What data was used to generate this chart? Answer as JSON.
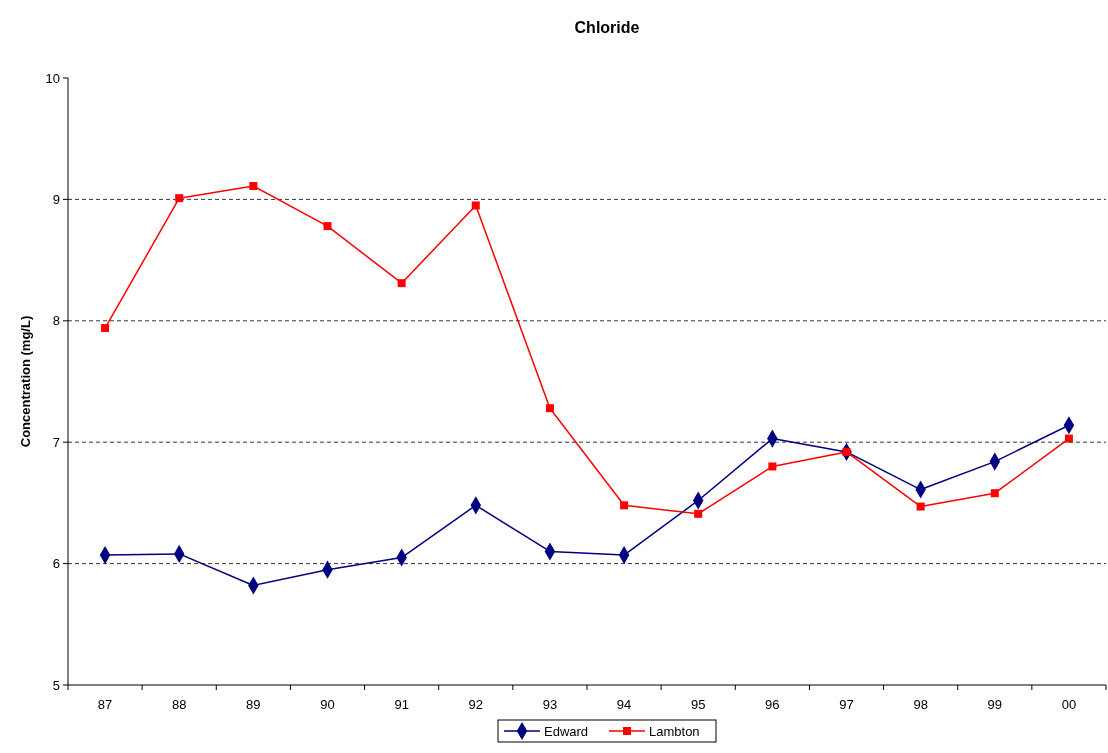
{
  "chart_data": {
    "type": "line",
    "title": "Chloride",
    "ylabel": "Concentration (mg/L)",
    "categories": [
      "87",
      "88",
      "89",
      "90",
      "91",
      "92",
      "93",
      "94",
      "95",
      "96",
      "97",
      "98",
      "99",
      "00"
    ],
    "series": [
      {
        "name": "Edward",
        "color": "#000080",
        "marker": "diamond",
        "values": [
          6.07,
          6.08,
          5.82,
          5.95,
          6.05,
          6.48,
          6.1,
          6.07,
          6.52,
          7.03,
          6.92,
          6.61,
          6.84,
          7.14
        ]
      },
      {
        "name": "Lambton",
        "color": "#ff0000",
        "marker": "square",
        "values": [
          7.94,
          9.01,
          9.11,
          8.78,
          8.31,
          8.95,
          7.28,
          6.48,
          6.41,
          6.8,
          6.92,
          6.47,
          6.58,
          7.03
        ]
      }
    ],
    "ylim": [
      5,
      10
    ],
    "yticks": [
      5,
      6,
      7,
      8,
      9,
      10
    ],
    "grid": "y",
    "legend": "bottom",
    "line_style": "solid"
  }
}
